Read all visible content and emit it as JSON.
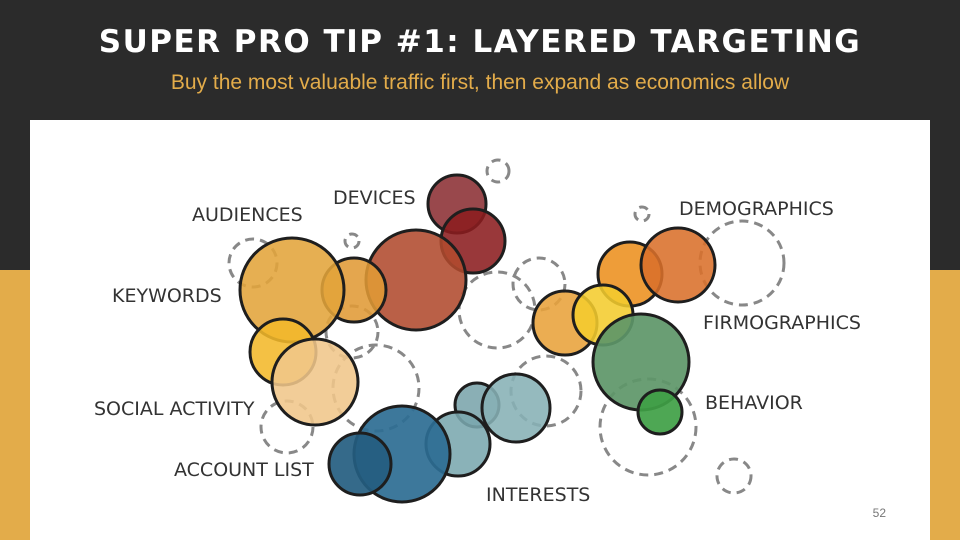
{
  "slide": {
    "title": "SUPER PRO TIP #1: LAYERED TARGETING",
    "subtitle": "Buy the most valuable traffic first, then expand as economics allow",
    "page_number": "52"
  },
  "labels": {
    "audiences": "AUDIENCES",
    "devices": "DEVICES",
    "demographics": "DEMOGRAPHICS",
    "keywords": "KEYWORDS",
    "firmographics": "FIRMOGRAPHICS",
    "social_activity": "SOCIAL ACTIVITY",
    "behavior": "BEHAVIOR",
    "account_list": "ACCOUNT LIST",
    "interests": "INTERESTS"
  },
  "colors": {
    "top_band": "#2b2b2b",
    "bottom_band": "#e3ac4a",
    "subtitle": "#e3ac4a"
  }
}
